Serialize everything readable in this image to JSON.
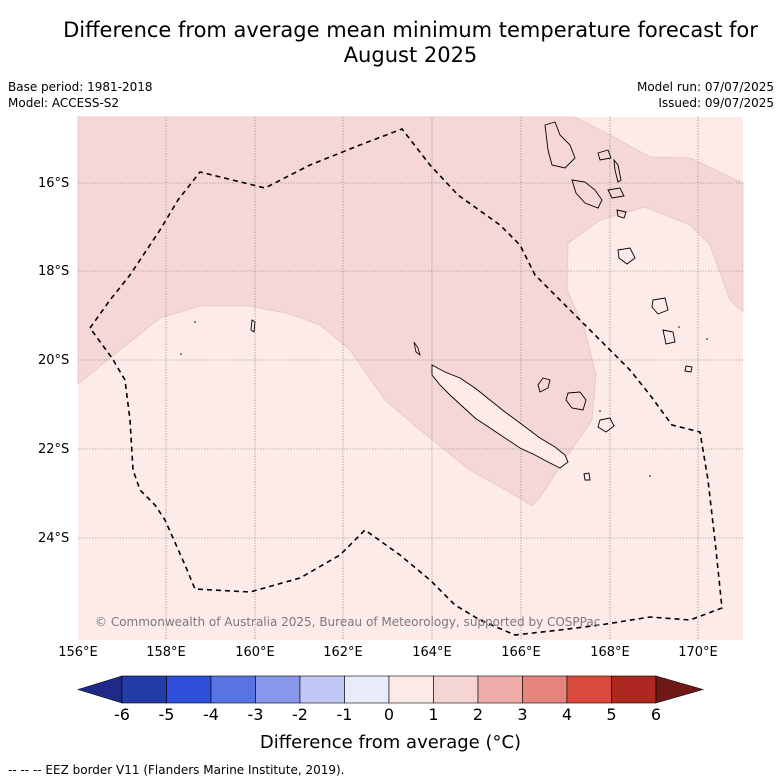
{
  "title_line1": "Difference from average mean minimum temperature forecast for",
  "title_line2": "August 2025",
  "base_period": "Base period: 1981-2018",
  "model": "Model: ACCESS-S2",
  "model_run": "Model run: 07/07/2025",
  "issued": "Issued: 09/07/2025",
  "lat_labels": [
    "16°S",
    "18°S",
    "20°S",
    "22°S",
    "24°S"
  ],
  "lon_labels": [
    "156°E",
    "158°E",
    "160°E",
    "162°E",
    "164°E",
    "166°E",
    "168°E",
    "170°E"
  ],
  "copyright": "© Commonwealth of Australia 2025, Bureau of Meteorology, supported by COSPPac",
  "colorbar": {
    "ticks": [
      "-6",
      "-5",
      "-4",
      "-3",
      "-2",
      "-1",
      "0",
      "1",
      "2",
      "3",
      "4",
      "5",
      "6"
    ],
    "colors": [
      "#1f2a88",
      "#223da6",
      "#2f4fdc",
      "#5873e2",
      "#8798ea",
      "#c0c7f5",
      "#e8ebfa",
      "#fde9e6",
      "#f5d5d4",
      "#eeaca8",
      "#e5847d",
      "#db4a3f",
      "#ae2822",
      "#6e1916"
    ],
    "label": "Difference from average (°C)"
  },
  "map_fill": {
    "zero_to_one": "#fcebe8",
    "one_to_two": "#f5d7d6"
  },
  "footer": "--  --  -- EEZ border V11 (Flanders Marine Institute, 2019)."
}
